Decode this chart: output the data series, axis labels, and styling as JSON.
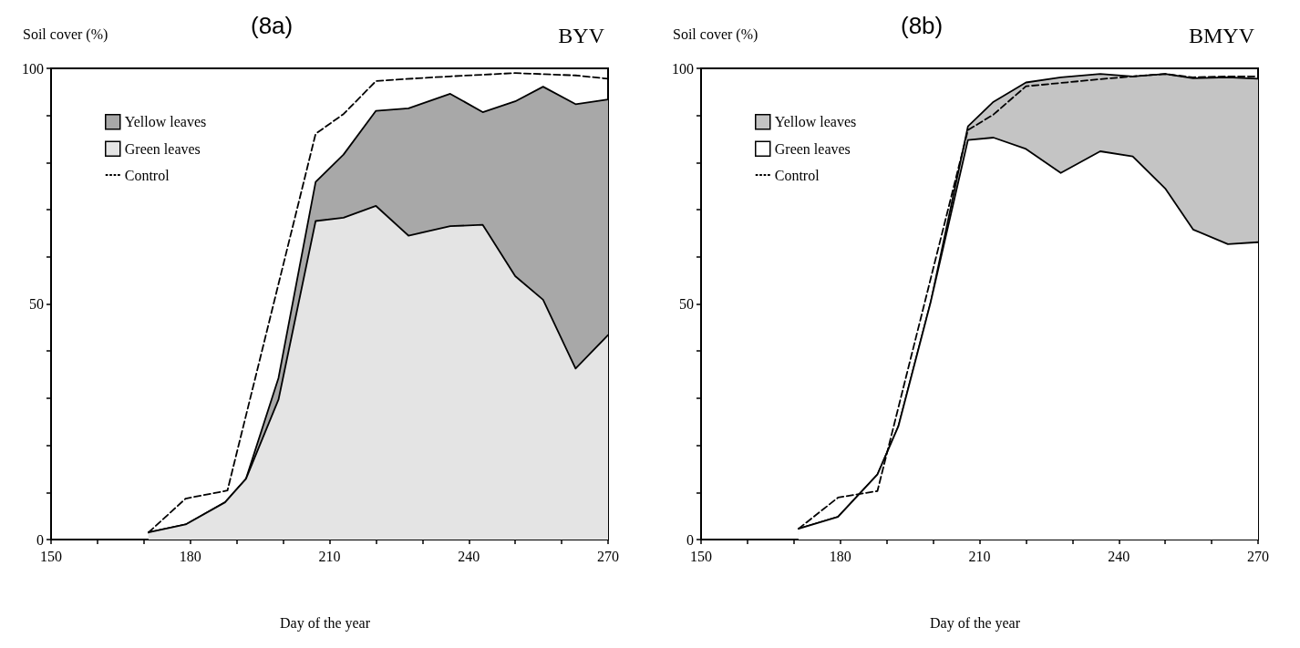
{
  "chart_data": [
    {
      "type": "area",
      "title": "(8a)",
      "subtitle": "BYV",
      "xlabel": "Day of the year",
      "ylabel": "Soil cover (%)",
      "stacked": true,
      "legend": "top left",
      "grid": false,
      "marker": "none",
      "xlim": [
        150,
        270
      ],
      "xticks": [
        150,
        {
          "value": 160,
          "label": null
        },
        {
          "value": 170,
          "label": null
        },
        180,
        {
          "value": 190,
          "label": null
        },
        {
          "value": 200,
          "label": null
        },
        210,
        {
          "value": 220,
          "label": null
        },
        {
          "value": 230,
          "label": null
        },
        240,
        {
          "value": 250,
          "label": null
        },
        {
          "value": 260,
          "label": null
        },
        270
      ],
      "ylim": [
        0,
        100
      ],
      "yticks": [
        0,
        {
          "value": 10,
          "label": null
        },
        {
          "value": 20,
          "label": null
        },
        {
          "value": 30,
          "label": null
        },
        {
          "value": 40,
          "label": null
        },
        50,
        {
          "value": 60,
          "label": null
        },
        {
          "value": 70,
          "label": null
        },
        {
          "value": 80,
          "label": null
        },
        {
          "value": 90,
          "label": null
        },
        100
      ],
      "series": [
        {
          "name": "Green leaves",
          "type": "area",
          "color": "#e4e4e4",
          "x": [
            171,
            179,
            187.5,
            192,
            199,
            207,
            213,
            220,
            227,
            236,
            243,
            250,
            256,
            263,
            270
          ],
          "values": [
            1.5,
            3.2,
            7.9,
            12.9,
            29.7,
            67.6,
            68.3,
            70.8,
            64.5,
            66.5,
            66.8,
            55.9,
            50.9,
            36.3,
            43.4
          ]
        },
        {
          "name": "Yellow leaves",
          "type": "area",
          "color": "#a8a8a8",
          "x": [
            171,
            179,
            187.5,
            192,
            199,
            207,
            213,
            220,
            227,
            236,
            243,
            250,
            256,
            263,
            270
          ],
          "values": [
            0,
            0,
            0,
            0,
            4.6,
            8.3,
            13.4,
            20.2,
            27,
            28.1,
            23.9,
            37.1,
            45.2,
            56.1,
            50
          ]
        },
        {
          "name": "Control",
          "type": "line",
          "color": "#000000",
          "line_style": "dashed",
          "x": [
            171,
            179,
            188,
            207,
            213,
            220,
            229,
            236,
            250,
            263,
            270
          ],
          "values": [
            1.5,
            8.7,
            10.4,
            86.1,
            90.3,
            97.3,
            97.9,
            98.3,
            99,
            98.5,
            97.8
          ]
        }
      ]
    },
    {
      "type": "area",
      "title": "(8b)",
      "subtitle": "BMYV",
      "xlabel": "Day of the year",
      "ylabel": "Soil cover (%)",
      "stacked": true,
      "legend": "top left",
      "grid": false,
      "marker": "none",
      "xlim": [
        150,
        270
      ],
      "xticks": [
        150,
        {
          "value": 160,
          "label": null
        },
        {
          "value": 170,
          "label": null
        },
        180,
        {
          "value": 190,
          "label": null
        },
        {
          "value": 200,
          "label": null
        },
        210,
        {
          "value": 220,
          "label": null
        },
        {
          "value": 230,
          "label": null
        },
        240,
        {
          "value": 250,
          "label": null
        },
        {
          "value": 260,
          "label": null
        },
        270
      ],
      "ylim": [
        0,
        100
      ],
      "yticks": [
        0,
        {
          "value": 10,
          "label": null
        },
        {
          "value": 20,
          "label": null
        },
        {
          "value": 30,
          "label": null
        },
        {
          "value": 40,
          "label": null
        },
        50,
        {
          "value": 60,
          "label": null
        },
        {
          "value": 70,
          "label": null
        },
        {
          "value": 80,
          "label": null
        },
        {
          "value": 90,
          "label": null
        },
        100
      ],
      "series": [
        {
          "name": "Green leaves",
          "type": "area",
          "color": "#ffffff",
          "x": [
            171,
            179.5,
            188,
            192.5,
            199.5,
            207.5,
            213,
            220,
            227.5,
            236,
            243,
            250,
            256,
            263.5,
            270
          ],
          "values": [
            2.3,
            4.8,
            13.8,
            24,
            50.5,
            84.8,
            85.3,
            82.9,
            77.8,
            82.4,
            81.3,
            74.5,
            65.8,
            62.7,
            63.1
          ]
        },
        {
          "name": "Yellow leaves",
          "type": "area",
          "color": "#c4c4c4",
          "x": [
            171,
            179.5,
            188,
            192.5,
            199.5,
            207.5,
            213,
            220,
            227.5,
            236,
            243,
            250,
            256,
            263.5,
            270
          ],
          "values": [
            0,
            0,
            0,
            0,
            0,
            2.9,
            7.6,
            14.1,
            20.3,
            16.4,
            17,
            24.3,
            32.1,
            35.4,
            34.7
          ]
        },
        {
          "name": "Control",
          "type": "line",
          "color": "#000000",
          "line_style": "dashed",
          "x": [
            171,
            179.5,
            188,
            207.5,
            213,
            220,
            227.5,
            236,
            243,
            250,
            256,
            263.5,
            270
          ],
          "values": [
            2.3,
            8.9,
            10.3,
            86.9,
            90.2,
            96.2,
            96.9,
            97.7,
            98.3,
            98.8,
            98.1,
            98.3,
            98.3
          ]
        }
      ]
    }
  ]
}
